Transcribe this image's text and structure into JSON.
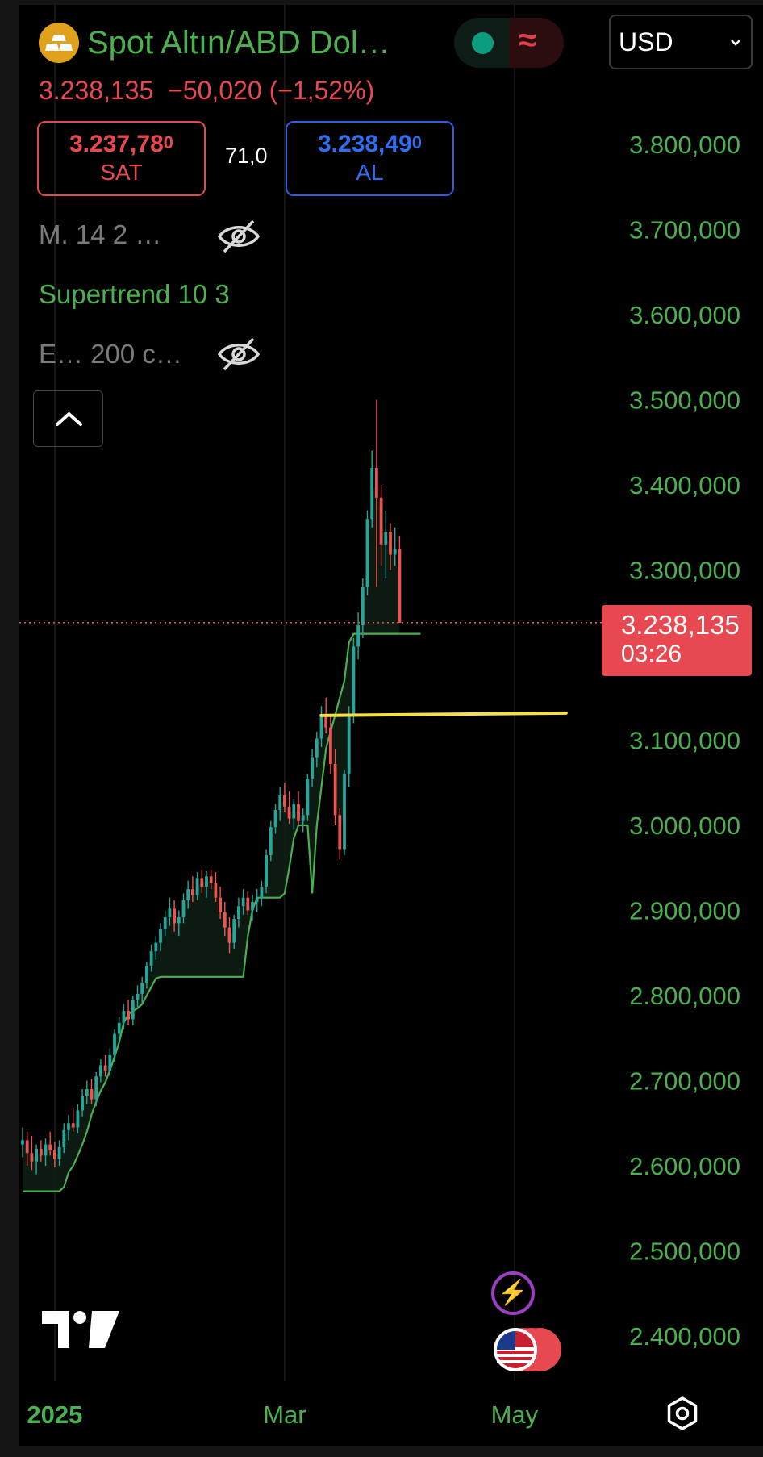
{
  "header": {
    "symbol_name": "Spot Altın/ABD Dol…",
    "last_price": "3.238,135",
    "change": "−50,020 (−1,52%)",
    "status_icon": "≈",
    "currency": "USD"
  },
  "quote": {
    "bid_price": "3.237,78",
    "bid_sup": "0",
    "bid_label": "SAT",
    "spread": "71,0",
    "ask_price": "3.238,49",
    "ask_sup": "0",
    "ask_label": "AL"
  },
  "indicators": [
    {
      "label": "M. 14 2 …",
      "visible": false
    },
    {
      "label": "Supertrend 10 3",
      "visible": true
    },
    {
      "label": "E… 200 c…",
      "visible": false
    }
  ],
  "price_tag": {
    "price": "3.238,135",
    "countdown": "03:26"
  },
  "colors": {
    "up": "#26a69a",
    "down": "#ef5350",
    "supertrend": "#4caf50",
    "axis_text": "#4caf50",
    "horizontal_line": "#f5e04a",
    "price_tag": "#e8484f"
  },
  "chart_data": {
    "type": "candlestick",
    "ylim": [
      2350000,
      3900000
    ],
    "y_ticks": [
      "3.800,000",
      "3.700,000",
      "3.600,000",
      "3.500,000",
      "3.400,000",
      "3.300,000",
      "3.100,000",
      "3.000,000",
      "2.900,000",
      "2.800,000",
      "2.700,000",
      "2.600,000",
      "2.500,000",
      "2.400,000"
    ],
    "y_tick_values": [
      3800000,
      3700000,
      3600000,
      3500000,
      3400000,
      3300000,
      3100000,
      3000000,
      2900000,
      2800000,
      2700000,
      2600000,
      2500000,
      2400000
    ],
    "x_ticks": [
      {
        "label": "2025",
        "index": 7
      },
      {
        "label": "Mar",
        "index": 57
      },
      {
        "label": "May",
        "index": 107
      }
    ],
    "current_price": 3238135,
    "horizontal_line": {
      "value": 3130000,
      "from_index": 66,
      "to_index": 114
    },
    "candles": [
      [
        2625,
        2645,
        2610,
        2630
      ],
      [
        2630,
        2640,
        2600,
        2615
      ],
      [
        2615,
        2635,
        2595,
        2605
      ],
      [
        2605,
        2625,
        2590,
        2620
      ],
      [
        2620,
        2630,
        2605,
        2612
      ],
      [
        2612,
        2632,
        2600,
        2625
      ],
      [
        2625,
        2640,
        2612,
        2618
      ],
      [
        2618,
        2628,
        2598,
        2608
      ],
      [
        2608,
        2630,
        2600,
        2622
      ],
      [
        2622,
        2650,
        2615,
        2642
      ],
      [
        2642,
        2660,
        2630,
        2650
      ],
      [
        2650,
        2668,
        2640,
        2645
      ],
      [
        2645,
        2672,
        2638,
        2665
      ],
      [
        2665,
        2690,
        2658,
        2682
      ],
      [
        2682,
        2700,
        2672,
        2690
      ],
      [
        2690,
        2702,
        2672,
        2678
      ],
      [
        2678,
        2710,
        2670,
        2705
      ],
      [
        2705,
        2725,
        2698,
        2718
      ],
      [
        2718,
        2730,
        2705,
        2712
      ],
      [
        2712,
        2738,
        2705,
        2730
      ],
      [
        2730,
        2760,
        2722,
        2755
      ],
      [
        2755,
        2775,
        2745,
        2768
      ],
      [
        2768,
        2790,
        2760,
        2782
      ],
      [
        2782,
        2795,
        2765,
        2772
      ],
      [
        2772,
        2800,
        2765,
        2795
      ],
      [
        2795,
        2812,
        2785,
        2802
      ],
      [
        2802,
        2822,
        2790,
        2815
      ],
      [
        2815,
        2840,
        2808,
        2835
      ],
      [
        2835,
        2860,
        2828,
        2852
      ],
      [
        2852,
        2870,
        2842,
        2862
      ],
      [
        2862,
        2885,
        2852,
        2878
      ],
      [
        2878,
        2900,
        2870,
        2892
      ],
      [
        2892,
        2915,
        2882,
        2902
      ],
      [
        2902,
        2912,
        2875,
        2885
      ],
      [
        2885,
        2900,
        2870,
        2892
      ],
      [
        2892,
        2920,
        2885,
        2912
      ],
      [
        2912,
        2935,
        2902,
        2925
      ],
      [
        2925,
        2940,
        2910,
        2918
      ],
      [
        2918,
        2945,
        2912,
        2938
      ],
      [
        2938,
        2948,
        2920,
        2928
      ],
      [
        2928,
        2946,
        2915,
        2940
      ],
      [
        2940,
        2948,
        2925,
        2932
      ],
      [
        2932,
        2945,
        2910,
        2915
      ],
      [
        2915,
        2928,
        2890,
        2898
      ],
      [
        2898,
        2910,
        2870,
        2880
      ],
      [
        2880,
        2892,
        2850,
        2862
      ],
      [
        2862,
        2895,
        2855,
        2890
      ],
      [
        2890,
        2915,
        2880,
        2905
      ],
      [
        2905,
        2925,
        2895,
        2915
      ],
      [
        2915,
        2922,
        2895,
        2900
      ],
      [
        2900,
        2918,
        2888,
        2910
      ],
      [
        2910,
        2925,
        2898,
        2915
      ],
      [
        2915,
        2935,
        2905,
        2928
      ],
      [
        2928,
        2972,
        2920,
        2965
      ],
      [
        2965,
        3005,
        2958,
        2998
      ],
      [
        2998,
        3025,
        2990,
        3018
      ],
      [
        3018,
        3045,
        3005,
        3035
      ],
      [
        3035,
        3050,
        3015,
        3022
      ],
      [
        3022,
        3040,
        3002,
        3008
      ],
      [
        3008,
        3030,
        2995,
        3025
      ],
      [
        3025,
        3040,
        3000,
        3005
      ],
      [
        3005,
        3020,
        2992,
        3012
      ],
      [
        3012,
        3060,
        3005,
        3055
      ],
      [
        3055,
        3090,
        3045,
        3080
      ],
      [
        3080,
        3110,
        3068,
        3102
      ],
      [
        3102,
        3140,
        3092,
        3130
      ],
      [
        3130,
        3150,
        3108,
        3115
      ],
      [
        3115,
        3130,
        3060,
        3072
      ],
      [
        3072,
        3090,
        3000,
        3012
      ],
      [
        3012,
        3020,
        2960,
        2972
      ],
      [
        2972,
        3065,
        2965,
        3060
      ],
      [
        3060,
        3140,
        3045,
        3130
      ],
      [
        3130,
        3220,
        3120,
        3210
      ],
      [
        3210,
        3250,
        3195,
        3235
      ],
      [
        3235,
        3290,
        3220,
        3280
      ],
      [
        3280,
        3370,
        3270,
        3360
      ],
      [
        3360,
        3440,
        3350,
        3420
      ],
      [
        3420,
        3500,
        3280,
        3385
      ],
      [
        3385,
        3400,
        3305,
        3330
      ],
      [
        3330,
        3370,
        3290,
        3345
      ],
      [
        3345,
        3355,
        3300,
        3318
      ],
      [
        3318,
        3350,
        3305,
        3325
      ],
      [
        3325,
        3340,
        3238,
        3238
      ]
    ],
    "candle_scale": 1000,
    "supertrend": [
      2570,
      2570,
      2570,
      2570,
      2570,
      2570,
      2570,
      2570,
      2570,
      2575,
      2592,
      2600,
      2612,
      2625,
      2640,
      2660,
      2675,
      2688,
      2698,
      2712,
      2728,
      2745,
      2768,
      2778,
      2782,
      2785,
      2790,
      2800,
      2810,
      2820,
      2822,
      2822,
      2822,
      2822,
      2822,
      2822,
      2822,
      2822,
      2822,
      2822,
      2822,
      2822,
      2822,
      2822,
      2822,
      2822,
      2822,
      2822,
      2822,
      2870,
      2900,
      2915,
      2915,
      2915,
      2915,
      2915,
      2915,
      2920,
      2950,
      2985,
      3000,
      3000,
      3000,
      2920,
      3000,
      3045,
      3090,
      3110,
      3130,
      3150,
      3170,
      3215,
      3225,
      3225,
      3225,
      3225,
      3225,
      3225,
      3225,
      3225,
      3225,
      3225,
      3225,
      3225
    ],
    "supertrend_start_index": 0
  }
}
